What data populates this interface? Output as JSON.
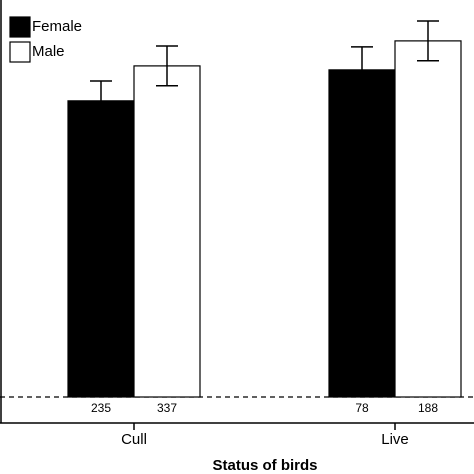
{
  "chart_data": {
    "type": "bar",
    "x_label": "Status of birds",
    "categories": [
      "Cull",
      "Live"
    ],
    "series": [
      {
        "name": "Female",
        "color": "#000000",
        "values": [
          74.6,
          82.4
        ],
        "errors": [
          5.0,
          5.8
        ],
        "sample_sizes": [
          235,
          78
        ]
      },
      {
        "name": "Male",
        "color": "#ffffff",
        "values": [
          83.4,
          89.7
        ],
        "errors": [
          5.0,
          5.0
        ],
        "sample_sizes": [
          337,
          188
        ]
      }
    ],
    "ylim": [
      0,
      100
    ],
    "legend": "upper left"
  }
}
